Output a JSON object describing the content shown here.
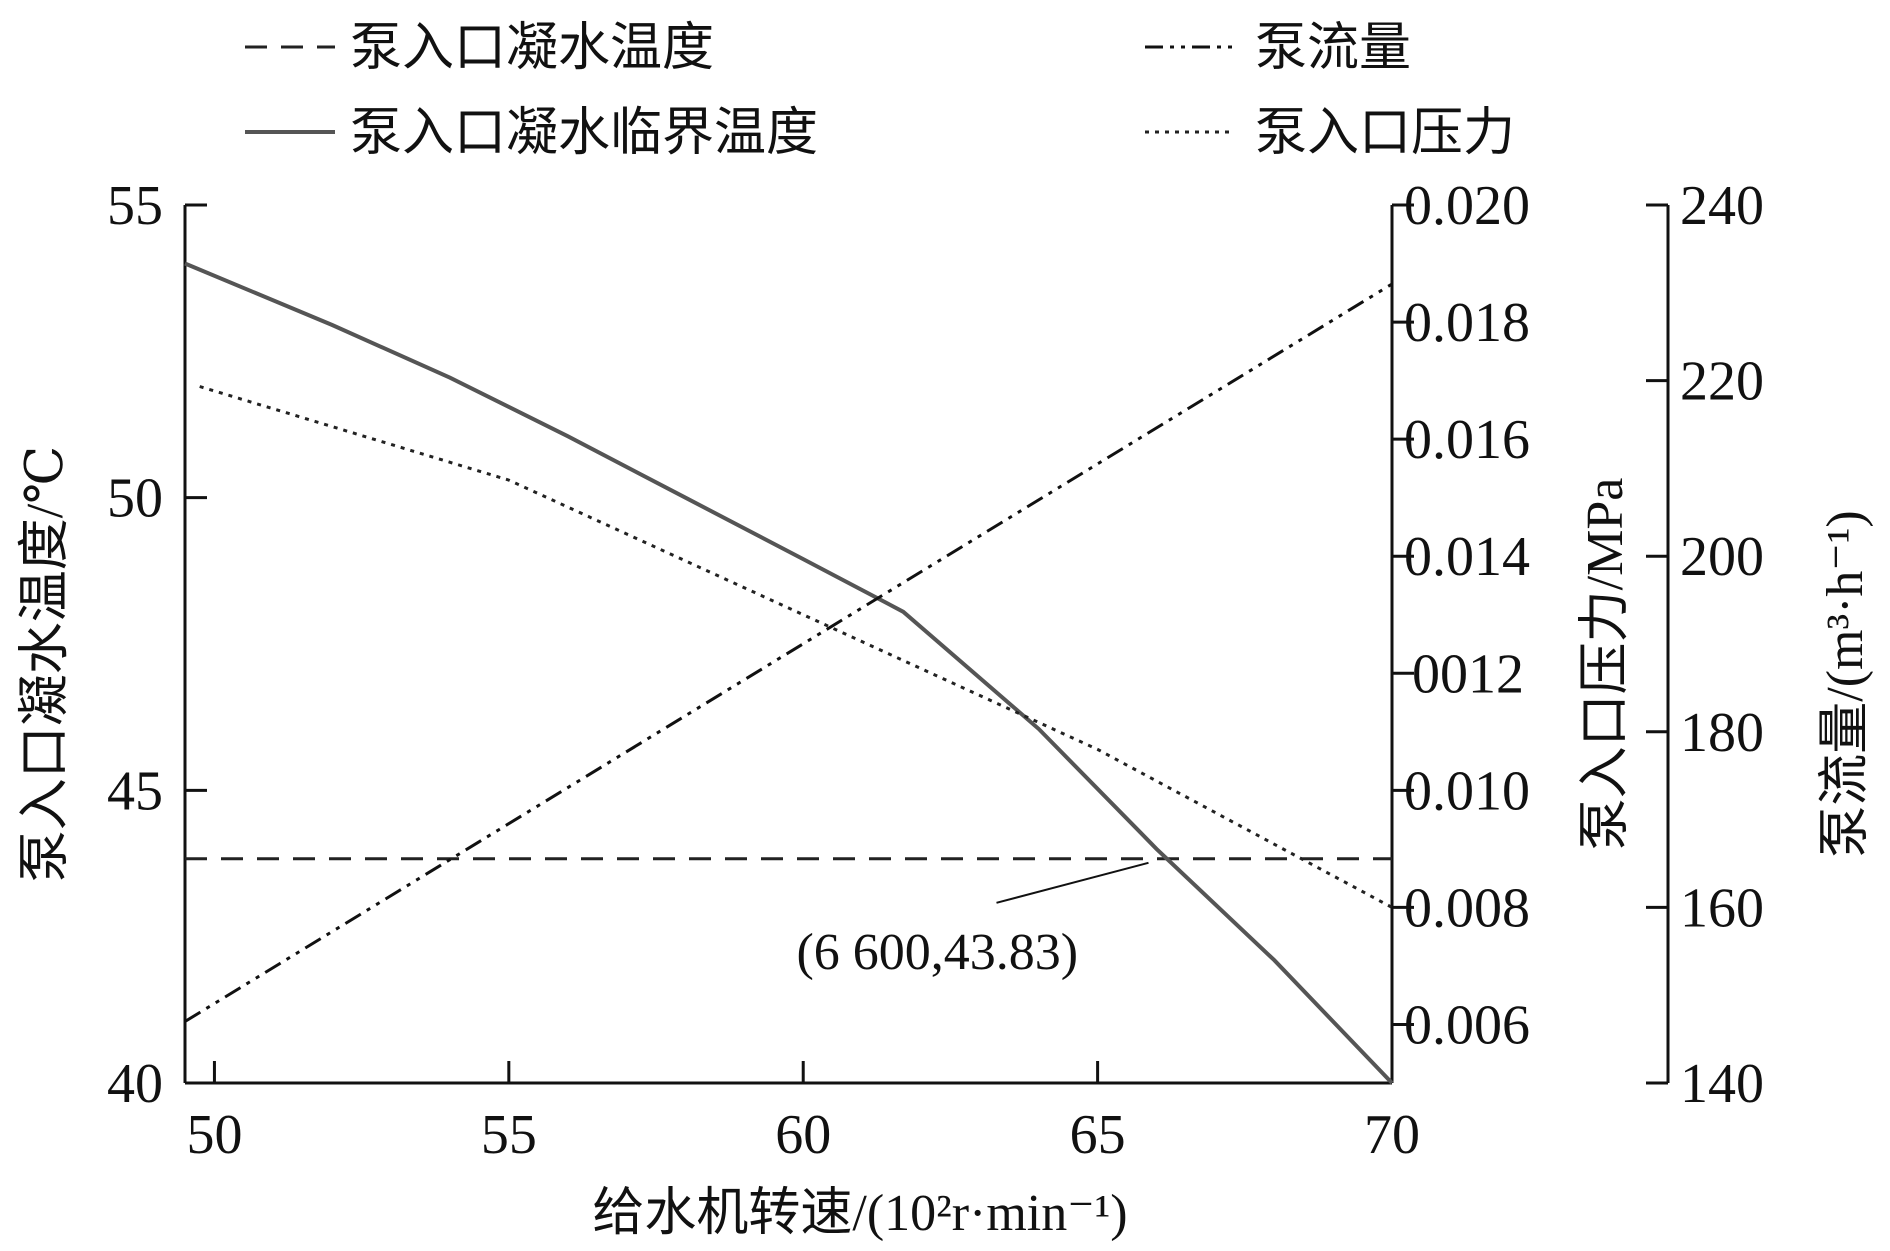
{
  "chart_data": {
    "type": "line",
    "xlabel": "给水机转速/(10²r·min⁻¹)",
    "x_ticks": [
      "50",
      "55",
      "60",
      "65",
      "70"
    ],
    "xlim": [
      49.5,
      70
    ],
    "left_axis": {
      "label": "泵入口凝水温度/℃",
      "ylim": [
        40,
        55
      ],
      "ticks": [
        "40",
        "45",
        "50",
        "55"
      ]
    },
    "right_axis_1": {
      "label": "泵入口压力/MPa",
      "ylim": [
        0.005,
        0.02
      ],
      "ticks": [
        "0.006",
        "0.008",
        "0.010",
        "0012",
        "0.014",
        "0.016",
        "0.018",
        "0.020"
      ]
    },
    "right_axis_2": {
      "label": "泵流量/(m³·h⁻¹)",
      "ylim": [
        140,
        240
      ],
      "ticks": [
        "140",
        "160",
        "180",
        "200",
        "220",
        "240"
      ]
    },
    "legend": {
      "placement": "top",
      "items": [
        {
          "label": "泵入口凝水温度",
          "style": "dashed"
        },
        {
          "label": "泵流量",
          "style": "dash-dot-dot"
        },
        {
          "label": "泵入口凝水临界温度",
          "style": "solid"
        },
        {
          "label": "泵入口压力",
          "style": "dotted"
        }
      ]
    },
    "series": [
      {
        "name": "泵入口凝水温度",
        "axis": "left",
        "color": "#222222",
        "style": "dashed",
        "x": [
          49.5,
          70
        ],
        "y": [
          43.83,
          43.83
        ]
      },
      {
        "name": "泵入口凝水临界温度",
        "axis": "left",
        "color": "#555555",
        "style": "solid",
        "x": [
          49.5,
          52,
          54,
          56,
          58,
          60,
          61.7,
          64,
          66,
          68,
          70
        ],
        "y": [
          54.0,
          52.95,
          52.05,
          51.05,
          50.0,
          48.95,
          48.05,
          46.05,
          44.0,
          42.1,
          40.0
        ]
      },
      {
        "name": "泵入口压力",
        "axis": "right_1",
        "color": "#222222",
        "style": "dotted",
        "x": [
          49.75,
          55,
          60,
          65,
          70
        ],
        "y": [
          0.0169,
          0.0153,
          0.013,
          0.0107,
          0.008
        ]
      },
      {
        "name": "泵流量",
        "axis": "right_2",
        "color": "#111111",
        "style": "dash-dot-dot",
        "x": [
          49.5,
          70
        ],
        "y": [
          147,
          231
        ]
      }
    ],
    "annotations": [
      {
        "text": "(6 600,43.83)",
        "points_to": {
          "x": 66.0,
          "y": 43.83
        }
      }
    ]
  }
}
